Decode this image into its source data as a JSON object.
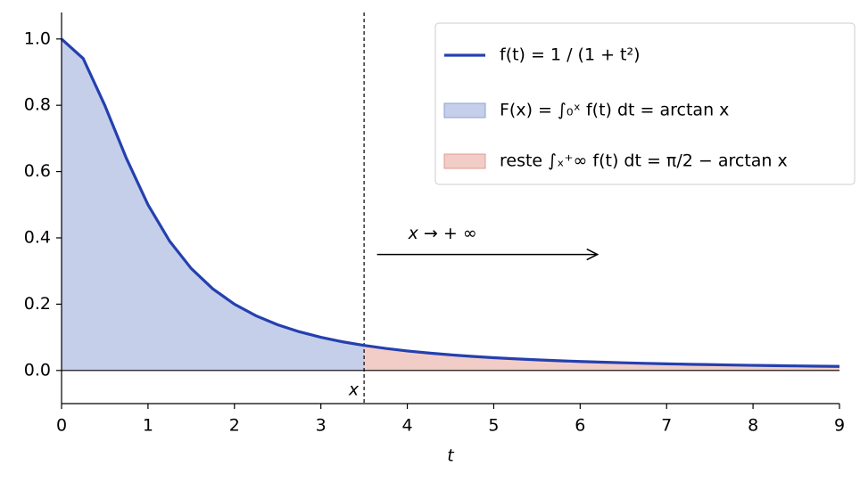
{
  "chart_data": {
    "type": "line",
    "xlabel": "t",
    "x": [
      0,
      0.25,
      0.5,
      0.75,
      1,
      1.25,
      1.5,
      1.75,
      2,
      2.25,
      2.5,
      2.75,
      3,
      3.25,
      3.5,
      3.75,
      4,
      4.25,
      4.5,
      4.75,
      5,
      5.25,
      5.5,
      5.75,
      6,
      6.25,
      6.5,
      6.75,
      7,
      7.25,
      7.5,
      7.75,
      8,
      8.25,
      8.5,
      8.75,
      9
    ],
    "series": [
      {
        "name": "f(t) = 1 / (1 + t²)",
        "color": "#2440b0",
        "values": [
          1,
          0.9412,
          0.8,
          0.64,
          0.5,
          0.3902,
          0.3077,
          0.2462,
          0.2,
          0.1649,
          0.1379,
          0.1168,
          0.1,
          0.0865,
          0.0755,
          0.0664,
          0.0588,
          0.0525,
          0.0471,
          0.0424,
          0.0385,
          0.035,
          0.032,
          0.0294,
          0.027,
          0.025,
          0.0231,
          0.0215,
          0.02,
          0.0187,
          0.0175,
          0.0164,
          0.0154,
          0.0145,
          0.0137,
          0.0129,
          0.0122
        ]
      }
    ],
    "fills": [
      {
        "name": "F(x) = ∫₀ˣ f(t) dt = arctan x",
        "color": "#c5cfea",
        "edge": "#8c9fd6",
        "side": "left"
      },
      {
        "name": "reste ∫ₓ⁺∞ f(t) dt = π/2 − arctan x",
        "color": "#f2cdc8",
        "edge": "#e09a92",
        "side": "right"
      }
    ],
    "x_marker": 3.5,
    "x_marker_label": "x",
    "annotation": {
      "text": "x → + ∞",
      "x": 3.65,
      "x_end": 6.2,
      "y": 0.35
    },
    "xlim": [
      0,
      9
    ],
    "xticks": [
      0,
      1,
      2,
      3,
      4,
      5,
      6,
      7,
      8,
      9
    ],
    "ylim": [
      -0.1,
      1.08
    ],
    "yticks": [
      {
        "value": 0,
        "label": "0.0"
      },
      0.2,
      0.4,
      0.6,
      {
        "value": 1,
        "label": "1.0"
      },
      0.8
    ],
    "legend": "upper right"
  }
}
